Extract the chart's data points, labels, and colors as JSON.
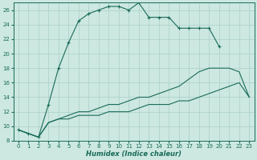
{
  "xlabel": "Humidex (Indice chaleur)",
  "background_color": "#cce8e0",
  "grid_color": "#aacfc8",
  "line_color": "#1a6b5a",
  "xlim": [
    -0.5,
    23.5
  ],
  "ylim": [
    8,
    27
  ],
  "xticks": [
    0,
    1,
    2,
    3,
    4,
    5,
    6,
    7,
    8,
    9,
    10,
    11,
    12,
    13,
    14,
    15,
    16,
    17,
    18,
    19,
    20,
    21,
    22,
    23
  ],
  "yticks": [
    8,
    10,
    12,
    14,
    16,
    18,
    20,
    22,
    24,
    26
  ],
  "series1_x": [
    0,
    1,
    2,
    3,
    4,
    5,
    6,
    7,
    8,
    9,
    10,
    11,
    12,
    13,
    14,
    15,
    16,
    17,
    18,
    19,
    20
  ],
  "series1_y": [
    9.5,
    9.0,
    8.5,
    13.0,
    18.0,
    21.5,
    24.5,
    25.5,
    26.0,
    26.5,
    26.5,
    26.0,
    27.0,
    25.0,
    25.0,
    25.0,
    23.5,
    23.5,
    23.5,
    23.5,
    21.0
  ],
  "series2_x": [
    0,
    1,
    2,
    3,
    4,
    5,
    6,
    7,
    8,
    9,
    10,
    11,
    12,
    13,
    14,
    15,
    16,
    17,
    18,
    19,
    20,
    21,
    22,
    23
  ],
  "series2_y": [
    9.5,
    9.0,
    8.5,
    10.5,
    11.0,
    11.5,
    12.0,
    12.0,
    12.5,
    13.0,
    13.0,
    13.5,
    14.0,
    14.0,
    14.5,
    15.0,
    15.5,
    16.5,
    17.5,
    18.0,
    18.0,
    18.0,
    17.5,
    14.0
  ],
  "series3_x": [
    0,
    1,
    2,
    3,
    4,
    5,
    6,
    7,
    8,
    9,
    10,
    11,
    12,
    13,
    14,
    15,
    16,
    17,
    18,
    19,
    20,
    21,
    22,
    23
  ],
  "series3_y": [
    9.5,
    9.0,
    8.5,
    10.5,
    11.0,
    11.0,
    11.5,
    11.5,
    11.5,
    12.0,
    12.0,
    12.0,
    12.5,
    13.0,
    13.0,
    13.0,
    13.5,
    13.5,
    14.0,
    14.5,
    15.0,
    15.5,
    16.0,
    14.0
  ]
}
